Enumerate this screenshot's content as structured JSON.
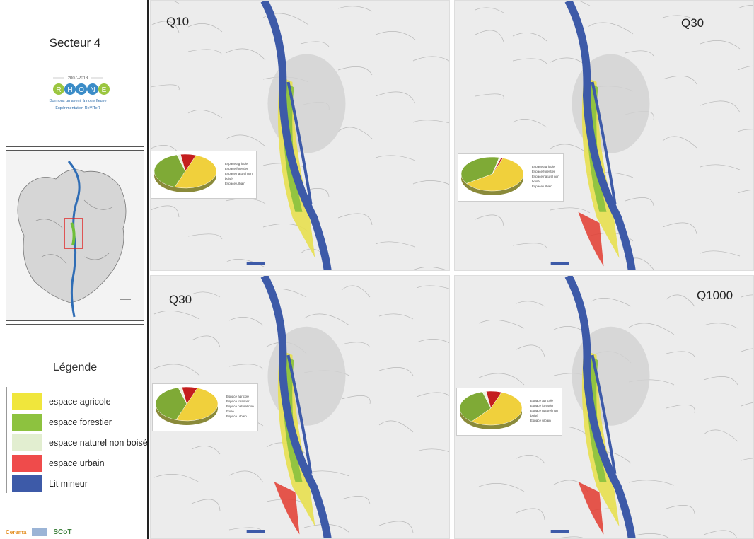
{
  "sidebar": {
    "title": "Secteur 4",
    "logo": {
      "years": "2007-2013",
      "word": "RHONE",
      "tagline": "Donnons un avenir à notre fleuve",
      "subtitle": "Expérimentation ReVITeR"
    },
    "legend": {
      "title": "Légende",
      "items": [
        {
          "label": "espace agricole",
          "color": "#f0e63c"
        },
        {
          "label": "espace forestier",
          "color": "#8dc23f"
        },
        {
          "label": "espace naturel non boisé",
          "color": "#e2eed0"
        },
        {
          "label": "espace urbain",
          "color": "#ef4b4b"
        },
        {
          "label": "Lit mineur",
          "color": "#3d5aa8"
        }
      ]
    },
    "partners": [
      "Cerema",
      "SCoT"
    ]
  },
  "maps": [
    {
      "label": "Q10",
      "slices": [
        0.5,
        0.4,
        0.02,
        0.08
      ]
    },
    {
      "label": "Q30",
      "slices": [
        0.6,
        0.38,
        0.01,
        0.01
      ]
    },
    {
      "label": "Q30",
      "slices": [
        0.5,
        0.4,
        0.02,
        0.08
      ]
    },
    {
      "label": "Q1000",
      "slices": [
        0.55,
        0.35,
        0.02,
        0.08
      ]
    }
  ],
  "pie_legend": [
    "Espace agricole",
    "Espace forestier",
    "Espace naturel non boisé",
    "Espace urbain"
  ],
  "colors": {
    "agricole": "#f0d03c",
    "forestier": "#7faa36",
    "naturel": "#eef3e2",
    "urbain": "#c41e1e",
    "river": "#3d5aa8",
    "map_bg": "#ececec"
  }
}
